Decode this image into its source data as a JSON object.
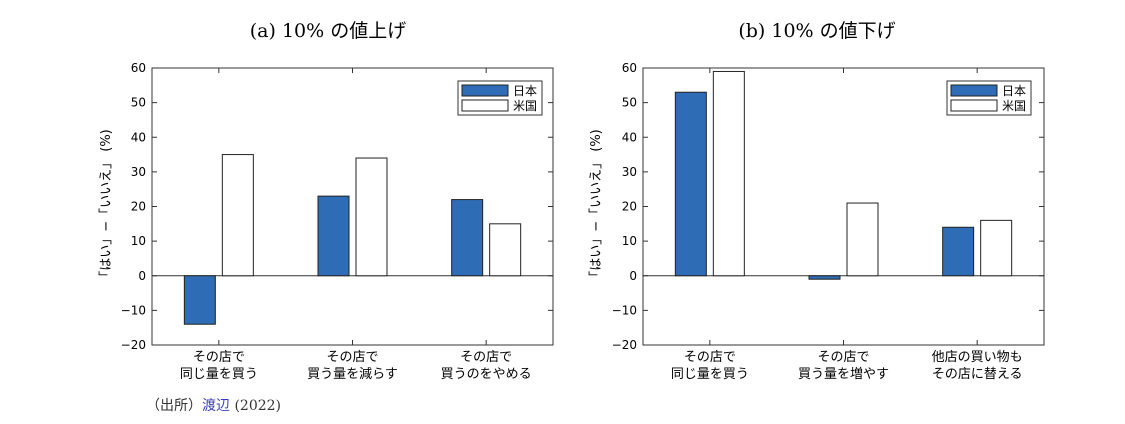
{
  "source": {
    "prefix": "（出所）",
    "link": "渡辺",
    "year": "(2022)"
  },
  "colors": {
    "japan": "#2e6db5",
    "us": "#ffffff",
    "axis": "#333333"
  },
  "chart_data": [
    {
      "type": "bar",
      "title": "(a) 10% の値上げ",
      "ylabel": "「はい」−「いいえ」 (%)",
      "ylim": [
        -20,
        60
      ],
      "yticks": [
        "60",
        "50",
        "40",
        "30",
        "20",
        "10",
        "0",
        "−10",
        "−20"
      ],
      "categories": [
        [
          "その店で",
          "同じ量を買う"
        ],
        [
          "その店で",
          "買う量を減らす"
        ],
        [
          "その店で",
          "買うのをやめる"
        ]
      ],
      "series": [
        {
          "name": "日本",
          "values": [
            -14,
            23,
            22
          ]
        },
        {
          "name": "米国",
          "values": [
            35,
            34,
            15
          ]
        }
      ],
      "legend": "top-right"
    },
    {
      "type": "bar",
      "title": "(b) 10% の値下げ",
      "ylabel": "「はい」−「いいえ」 (%)",
      "ylim": [
        -20,
        60
      ],
      "yticks": [
        "60",
        "50",
        "40",
        "30",
        "20",
        "10",
        "0",
        "−10",
        "−20"
      ],
      "categories": [
        [
          "その店で",
          "同じ量を買う"
        ],
        [
          "その店で",
          "買う量を増やす"
        ],
        [
          "他店の買い物も",
          "その店に替える"
        ]
      ],
      "series": [
        {
          "name": "日本",
          "values": [
            53,
            -1,
            14
          ]
        },
        {
          "name": "米国",
          "values": [
            59,
            21,
            16
          ]
        }
      ],
      "legend": "top-right"
    }
  ]
}
